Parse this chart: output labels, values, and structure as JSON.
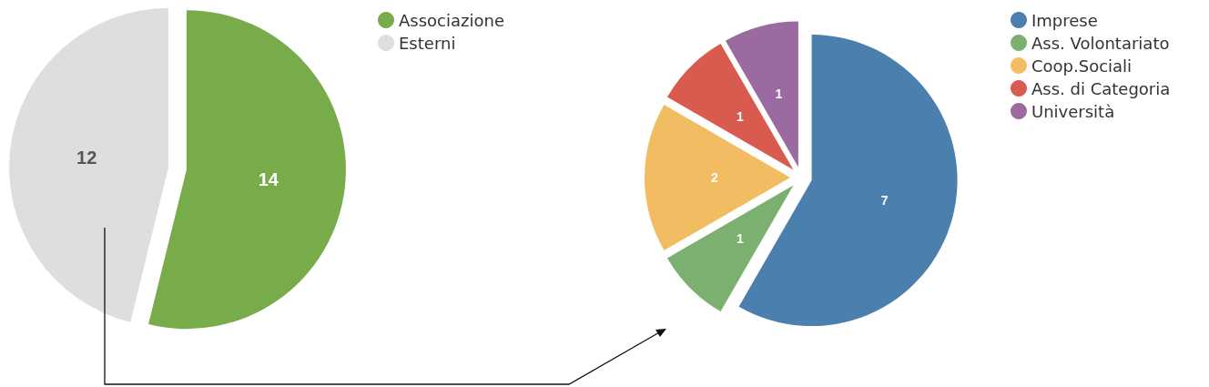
{
  "chart_data": [
    {
      "type": "pie",
      "categories": [
        "Associazione",
        "Esterni"
      ],
      "values": [
        14,
        12
      ],
      "colors": [
        "#78ab4a",
        "#dedede"
      ],
      "legend": "top right",
      "data_labels": true
    },
    {
      "type": "pie",
      "categories": [
        "Imprese",
        "Ass. Volontariato",
        "Coop.Sociali",
        "Ass. di Categoria",
        "Università"
      ],
      "values": [
        7,
        1,
        2,
        1,
        1
      ],
      "colors": [
        "#4a7fae",
        "#7bb070",
        "#f2bd62",
        "#d95b4f",
        "#9a6aa0"
      ],
      "legend": "top right",
      "data_labels": true
    }
  ]
}
